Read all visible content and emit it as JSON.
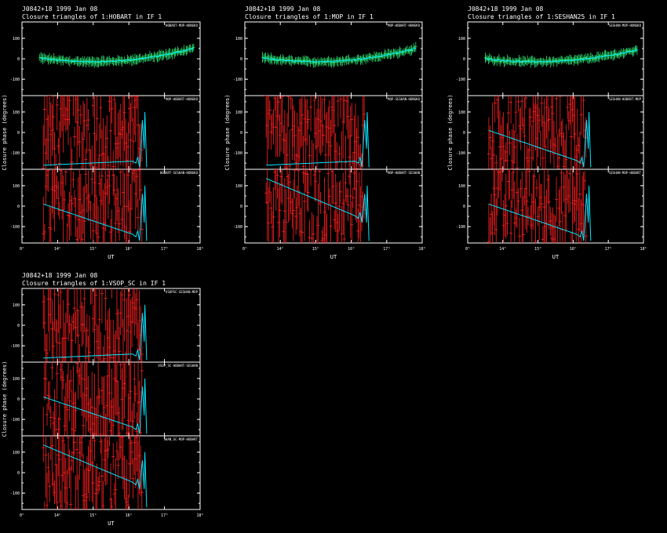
{
  "source": "J0842+18",
  "date": "1999 Jan 08",
  "x_tick_labels": [
    "0ʰ",
    "14ʰ",
    "15ʰ",
    "16ʰ",
    "17ʰ",
    "18ʰ"
  ],
  "x_axis_label": "UT",
  "y_axis_label": "Closure phase   (degrees)",
  "y_tick_labels": [
    "100",
    "0",
    "-100"
  ],
  "colors": {
    "data": "#ff2020",
    "model": "#00e5ff",
    "good": "#30ff80",
    "axes": "#ffffff"
  },
  "chart_data": [
    {
      "type": "scatter",
      "subtitle": "Closure triangles of 1:HOBART in IF 1",
      "panels": [
        {
          "label": "HOBART-MOP-HONGKO",
          "kind": "good",
          "offset": 30,
          "trend": 5
        },
        {
          "label": "MOP-HOBART-HONGKO",
          "kind": "scatter",
          "model": "flat"
        },
        {
          "label": "HOBART-SESHAN-HONGKO",
          "kind": "scatter",
          "model": "slope"
        }
      ]
    },
    {
      "type": "scatter",
      "subtitle": "Closure triangles of 1:MOP in IF 1",
      "panels": [
        {
          "label": "MOP-HOBART-HONGKO",
          "kind": "good",
          "offset": 30,
          "trend": 5
        },
        {
          "label": "MOP-SESHAN-HONGKO",
          "kind": "scatter",
          "model": "flat"
        },
        {
          "label": "MOP-HOBART-SESHAN",
          "kind": "scatter",
          "model": "slope_high"
        }
      ]
    },
    {
      "type": "scatter",
      "subtitle": "Closure triangles of 1:SESHAN25 in IF 1",
      "panels": [
        {
          "label": "SESHAN-MOP-HONGKO",
          "kind": "good",
          "offset": 25,
          "trend": 5
        },
        {
          "label": "SESHAN-HOBART-MOP",
          "kind": "scatter",
          "model": "slope"
        },
        {
          "label": "SESHAN-MOP-HOBART",
          "kind": "scatter",
          "model": "slope"
        }
      ]
    },
    {
      "type": "scatter",
      "subtitle": "Closure triangles of 1:VSOP_SC in IF 1",
      "panels": [
        {
          "label": "VSOPSC-SESHAN-MOP",
          "kind": "scatter",
          "model": "flat"
        },
        {
          "label": "VSOP_SC-HOBART-SESHAN",
          "kind": "scatter",
          "model": "slope"
        },
        {
          "label": "SHAN_SC-MOP-HOBART",
          "kind": "scatter",
          "model": "slope_high"
        }
      ]
    }
  ]
}
